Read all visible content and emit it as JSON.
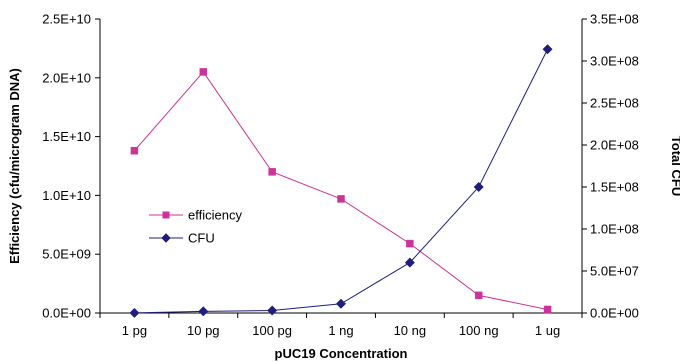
{
  "chart_data": {
    "type": "line",
    "categories": [
      "1 pg",
      "10 pg",
      "100 pg",
      "1 ng",
      "10 ng",
      "100 ng",
      "1 ug"
    ],
    "xlabel": "pUC19 Concentration",
    "ylabel_left": "Efficiency (cfu/microgram DNA)",
    "ylabel_right": "Total CFU",
    "y_left": {
      "lim": [
        0,
        25000000000
      ],
      "ticks": [
        "0.0E+00",
        "5.0E+09",
        "1.0E+10",
        "1.5E+10",
        "2.0E+10",
        "2.5E+10"
      ]
    },
    "y_right": {
      "lim": [
        0,
        350000000
      ],
      "ticks": [
        "0.0E+00",
        "5.0E+07",
        "1.0E+08",
        "1.5E+08",
        "2.0E+08",
        "2.5E+08",
        "3.0E+08",
        "3.5E+08"
      ]
    },
    "grid": false,
    "legend_placement": "center-left",
    "series": [
      {
        "name": "efficiency",
        "axis": "left",
        "marker": "square",
        "color": "#CC3399",
        "values": [
          13800000000,
          20500000000,
          12000000000,
          9700000000,
          5900000000,
          1500000000,
          300000000
        ]
      },
      {
        "name": "CFU",
        "axis": "right",
        "marker": "diamond",
        "color": "#1F1F7A",
        "values": [
          100000,
          2000000,
          3000000,
          11000000,
          60000000,
          150000000,
          314000000
        ]
      }
    ]
  }
}
